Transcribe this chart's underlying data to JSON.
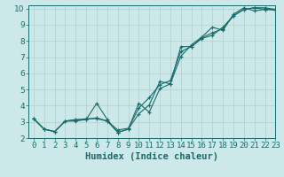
{
  "title": "",
  "xlabel": "Humidex (Indice chaleur)",
  "ylabel": "",
  "bg_color": "#cce8e8",
  "grid_color": "#b0cfcf",
  "line_color": "#1a6b6b",
  "xlim": [
    -0.5,
    23
  ],
  "ylim": [
    2,
    10.2
  ],
  "xticks": [
    0,
    1,
    2,
    3,
    4,
    5,
    6,
    7,
    8,
    9,
    10,
    11,
    12,
    13,
    14,
    15,
    16,
    17,
    18,
    19,
    20,
    21,
    22,
    23
  ],
  "yticks": [
    2,
    3,
    4,
    5,
    6,
    7,
    8,
    9,
    10
  ],
  "series1_x": [
    0,
    1,
    2,
    3,
    4,
    5,
    6,
    7,
    8,
    9,
    10,
    11,
    12,
    13,
    14,
    15,
    16,
    17,
    18,
    19,
    20,
    21,
    22,
    23
  ],
  "series1_y": [
    3.2,
    2.55,
    2.4,
    3.05,
    3.05,
    3.15,
    3.25,
    3.05,
    2.35,
    2.55,
    3.5,
    4.05,
    5.5,
    5.35,
    7.65,
    7.65,
    8.15,
    8.35,
    8.85,
    9.55,
    9.95,
    10.05,
    10.05,
    9.95
  ],
  "series2_x": [
    0,
    1,
    2,
    3,
    4,
    5,
    6,
    7,
    8,
    9,
    10,
    11,
    12,
    13,
    14,
    15,
    16,
    17,
    18,
    19,
    20,
    21,
    22,
    23
  ],
  "series2_y": [
    3.2,
    2.55,
    2.4,
    3.05,
    3.15,
    3.15,
    4.15,
    3.15,
    2.35,
    2.55,
    4.15,
    3.6,
    5.05,
    5.35,
    7.05,
    7.75,
    8.25,
    8.85,
    8.65,
    9.65,
    10.05,
    9.85,
    9.95,
    9.95
  ],
  "series3_x": [
    0,
    1,
    2,
    3,
    4,
    5,
    6,
    7,
    8,
    9,
    10,
    11,
    12,
    13,
    14,
    15,
    16,
    17,
    18,
    19,
    20,
    21,
    22,
    23
  ],
  "series3_y": [
    3.2,
    2.55,
    2.4,
    3.05,
    3.1,
    3.2,
    3.2,
    3.05,
    2.5,
    2.6,
    3.85,
    4.5,
    5.3,
    5.55,
    7.35,
    7.65,
    8.2,
    8.5,
    8.75,
    9.55,
    9.95,
    10.05,
    9.95,
    9.9
  ],
  "font_color": "#1a6b6b",
  "tick_fontsize": 6.5,
  "label_fontsize": 7.5
}
